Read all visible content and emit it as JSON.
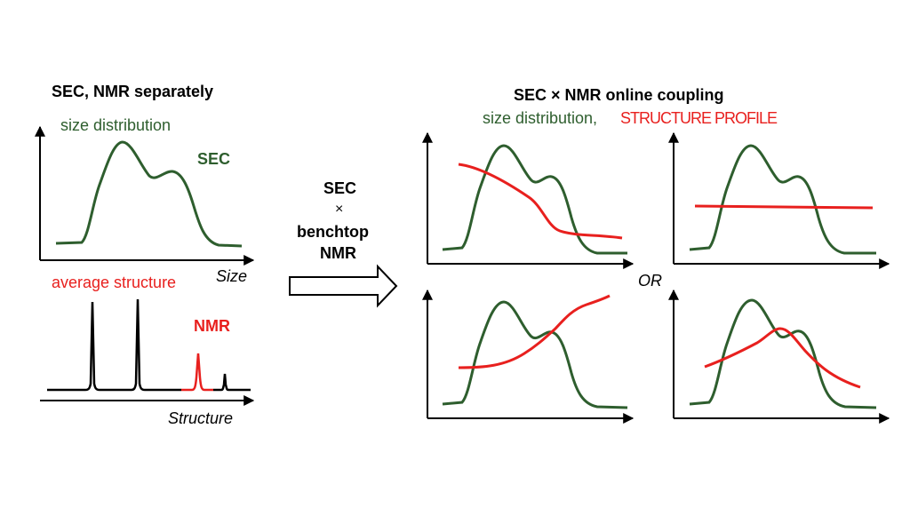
{
  "colors": {
    "green": "#2e5e2e",
    "red": "#e8201e",
    "black": "#000000"
  },
  "left": {
    "title": "SEC, NMR separately",
    "sec_caption": "size distribution",
    "sec_label": "SEC",
    "sec_axis": "Size",
    "nmr_caption": "average structure",
    "nmr_label": "NMR",
    "nmr_axis": "Structure"
  },
  "middle": {
    "line1": "SEC",
    "line2": "×",
    "line3": "benchtop",
    "line4": "NMR"
  },
  "right": {
    "title": "SEC × NMR online coupling",
    "subtitle_green": "size distribution,",
    "subtitle_red": "STRUCTURE PROFILE",
    "or_label": "OR"
  }
}
